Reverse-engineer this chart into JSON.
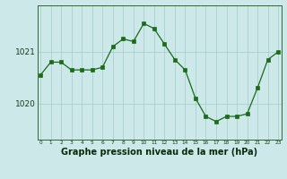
{
  "x": [
    0,
    1,
    2,
    3,
    4,
    5,
    6,
    7,
    8,
    9,
    10,
    11,
    12,
    13,
    14,
    15,
    16,
    17,
    18,
    19,
    20,
    21,
    22,
    23
  ],
  "y": [
    1020.55,
    1020.8,
    1020.8,
    1020.65,
    1020.65,
    1020.65,
    1020.7,
    1021.1,
    1021.25,
    1021.2,
    1021.55,
    1021.45,
    1021.15,
    1020.85,
    1020.65,
    1020.1,
    1019.75,
    1019.65,
    1019.75,
    1019.75,
    1019.8,
    1020.3,
    1020.85,
    1021.0
  ],
  "line_color": "#1a6b1a",
  "marker": "s",
  "marker_size": 2.2,
  "bg_color": "#cce8e8",
  "grid_color": "#aacece",
  "xlabel": "Graphe pression niveau de la mer (hPa)",
  "xlabel_fontsize": 7.0,
  "ytick_labels": [
    "1020",
    "1021"
  ],
  "ytick_vals": [
    1020,
    1021
  ],
  "xticks": [
    0,
    1,
    2,
    3,
    4,
    5,
    6,
    7,
    8,
    9,
    10,
    11,
    12,
    13,
    14,
    15,
    16,
    17,
    18,
    19,
    20,
    21,
    22,
    23
  ],
  "xlim": [
    -0.3,
    23.3
  ],
  "ylim": [
    1019.3,
    1021.9
  ]
}
